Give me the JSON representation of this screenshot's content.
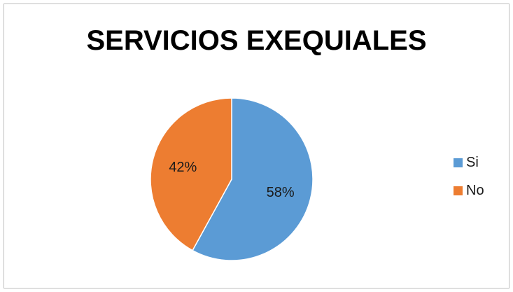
{
  "chart_data": {
    "type": "pie",
    "title": "SERVICIOS EXEQUIALES",
    "slices": [
      {
        "name": "Si",
        "value": 58,
        "label": "58%",
        "color": "#5b9bd5"
      },
      {
        "name": "No",
        "value": 42,
        "label": "42%",
        "color": "#ed7d31"
      }
    ],
    "legend": "right"
  }
}
